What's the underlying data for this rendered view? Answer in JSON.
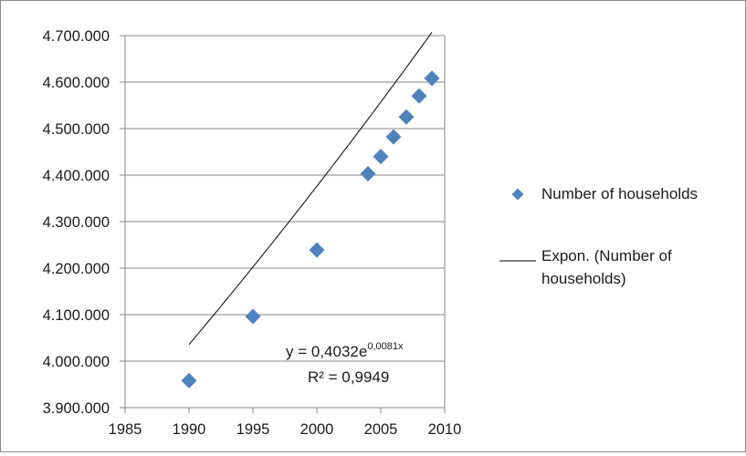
{
  "chart_data": {
    "type": "scatter",
    "series": [
      {
        "name": "Number of households",
        "marker": "diamond",
        "color": "#4f81bd",
        "x": [
          1990,
          1995,
          2000,
          2004,
          2005,
          2006,
          2007,
          2008,
          2009
        ],
        "y": [
          3958000,
          4096000,
          4239000,
          4403000,
          4440000,
          4482000,
          4525000,
          4570000,
          4608000
        ]
      }
    ],
    "trendline": {
      "name": "Expon. (Number of households)",
      "type": "exponential",
      "a": 0.4032,
      "b": 0.0081,
      "color": "#000000",
      "equation_prefix": "y = 0,4032e",
      "equation_exponent": "0,0081x",
      "r_squared_label": "R² = 0,9949"
    },
    "xlim": [
      1985,
      2010
    ],
    "ylim": [
      3900000,
      4700000
    ],
    "xticks": [
      "1985",
      "1990",
      "1995",
      "2000",
      "2005",
      "2010"
    ],
    "yticks": [
      "3.900.000",
      "4.000.000",
      "4.100.000",
      "4.200.000",
      "4.300.000",
      "4.400.000",
      "4.500.000",
      "4.600.000",
      "4.700.000"
    ],
    "grid": "horizontal",
    "legend_position": "right",
    "legend": {
      "series_label": "Number of households",
      "trend_label_line1": "Expon. (Number of",
      "trend_label_line2": "households)"
    },
    "colors": {
      "marker": "#4f81bd",
      "grid": "#868686",
      "axis": "#868686"
    }
  }
}
